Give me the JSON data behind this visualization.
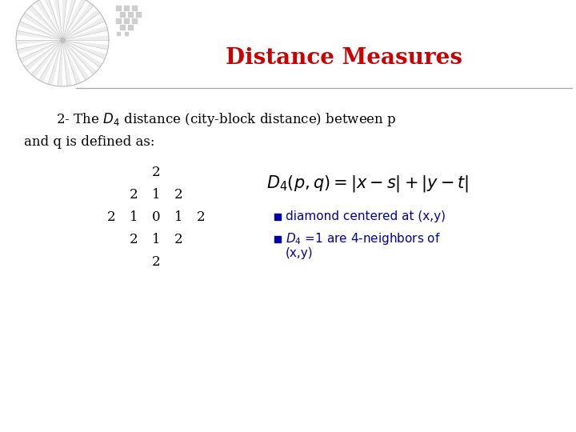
{
  "title": "Distance Measures",
  "title_color": "#cc0000",
  "title_fontsize": 20,
  "bg_color": "#ffffff",
  "line_color": "#aaaaaa",
  "body_text_color": "#000000",
  "body_fontsize": 12,
  "formula_fontsize": 13,
  "grid_fontsize": 12,
  "grid_numbers": [
    [
      "",
      "",
      "2",
      "",
      ""
    ],
    [
      "",
      "2",
      "1",
      "2",
      ""
    ],
    [
      "2",
      "1",
      "0",
      "1",
      "2"
    ],
    [
      "",
      "2",
      "1",
      "2",
      ""
    ],
    [
      "",
      "",
      "2",
      "",
      ""
    ]
  ],
  "bullet_color": "#0000aa",
  "bullet_text1": "diamond centered at (x,y)",
  "bullet_fontsize": 11
}
